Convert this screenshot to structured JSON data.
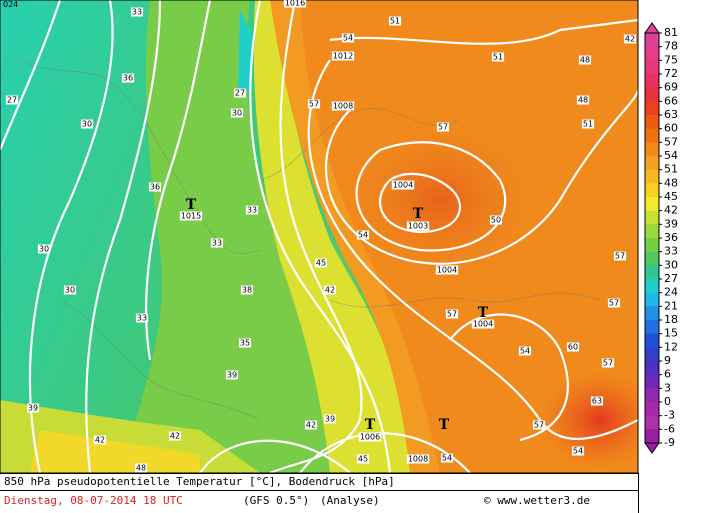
{
  "colorbar": {
    "ticks": [
      81,
      78,
      75,
      72,
      69,
      66,
      63,
      60,
      57,
      54,
      51,
      48,
      45,
      42,
      39,
      36,
      33,
      30,
      27,
      24,
      21,
      18,
      15,
      12,
      9,
      6,
      3,
      0,
      -3,
      -6,
      -9
    ],
    "colors": [
      "#e0409a",
      "#e63c8c",
      "#e8387a",
      "#ea3060",
      "#ec3040",
      "#ee4020",
      "#ee5a10",
      "#f07010",
      "#f28818",
      "#f4a020",
      "#f6b820",
      "#f8d020",
      "#f4e830",
      "#c8e030",
      "#9cd838",
      "#74d040",
      "#50c860",
      "#30c890",
      "#20d0c8",
      "#20b8e8",
      "#2090e8",
      "#2070e0",
      "#2050d8",
      "#3040c8",
      "#5030c0",
      "#7028b8",
      "#9028b0",
      "#a828a8",
      "#b030a8",
      "#9820a0"
    ]
  },
  "caption": {
    "title": "850 hPa pseudopotentielle Temperatur [°C], Bodendruck [hPa]",
    "date": "Dienstag, 08-07-2014  18 UTC",
    "model": "(GFS 0.5°)",
    "run": "(Analyse)",
    "source": "© www.wetter3.de"
  },
  "map": {
    "corner": "024",
    "isobar_labels": [
      "1016",
      "1012",
      "1008",
      "1004",
      "1003",
      "1004",
      "1004",
      "1015",
      "1006",
      "1008"
    ],
    "lows": [
      "T",
      "T",
      "T",
      "T",
      "T"
    ],
    "temperature_labels": [
      "33",
      "36",
      "27",
      "30",
      "36",
      "33",
      "30",
      "30",
      "33",
      "38",
      "35",
      "39",
      "39",
      "42",
      "42",
      "48",
      "45",
      "42",
      "57",
      "54",
      "51",
      "51",
      "48",
      "51",
      "57",
      "50",
      "54",
      "57",
      "54",
      "60",
      "57",
      "57",
      "57",
      "63",
      "57",
      "54",
      "54",
      "45",
      "42",
      "39",
      "27",
      "30",
      "33",
      "48",
      "42"
    ]
  }
}
